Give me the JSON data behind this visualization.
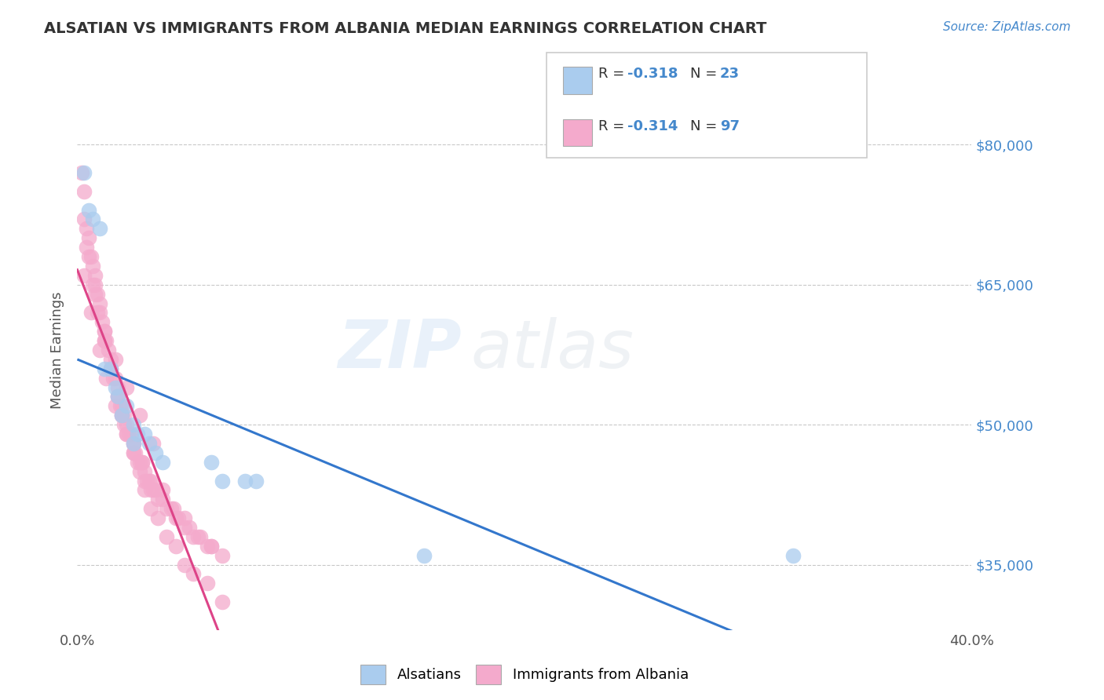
{
  "title": "ALSATIAN VS IMMIGRANTS FROM ALBANIA MEDIAN EARNINGS CORRELATION CHART",
  "source": "Source: ZipAtlas.com",
  "ylabel": "Median Earnings",
  "xlim": [
    0.0,
    0.4
  ],
  "ylim": [
    28000,
    88000
  ],
  "xtick_labels": [
    "0.0%",
    "",
    "",
    "",
    "40.0%"
  ],
  "xtick_vals": [
    0.0,
    0.1,
    0.2,
    0.3,
    0.4
  ],
  "ytick_labels": [
    "$35,000",
    "$50,000",
    "$65,000",
    "$80,000"
  ],
  "ytick_vals": [
    35000,
    50000,
    65000,
    80000
  ],
  "legend_labels_bottom": [
    "Alsatians",
    "Immigrants from Albania"
  ],
  "watermark_zip": "ZIP",
  "watermark_atlas": "atlas",
  "series1_color": "#aaccee",
  "series2_color": "#f4aacc",
  "line1_color": "#3377cc",
  "line2_color": "#dd4488",
  "background_color": "#ffffff",
  "grid_color": "#bbbbbb",
  "title_color": "#333333",
  "source_color": "#4488cc",
  "ytick_color": "#4488cc",
  "legend_r1": "R = -0.318",
  "legend_n1": "N = 23",
  "legend_r2": "R = -0.314",
  "legend_n2": "N = 97",
  "alsatian_x": [
    0.003,
    0.005,
    0.007,
    0.01,
    0.012,
    0.015,
    0.017,
    0.018,
    0.02,
    0.022,
    0.025,
    0.025,
    0.027,
    0.03,
    0.032,
    0.035,
    0.038,
    0.06,
    0.065,
    0.075,
    0.08,
    0.155,
    0.32
  ],
  "alsatian_y": [
    77000,
    73000,
    72000,
    71000,
    56000,
    56000,
    54000,
    53000,
    51000,
    52000,
    50000,
    48000,
    49000,
    49000,
    48000,
    47000,
    46000,
    46000,
    44000,
    44000,
    44000,
    36000,
    36000
  ],
  "albania_x": [
    0.002,
    0.003,
    0.004,
    0.005,
    0.006,
    0.007,
    0.008,
    0.008,
    0.009,
    0.01,
    0.01,
    0.011,
    0.012,
    0.012,
    0.013,
    0.014,
    0.015,
    0.015,
    0.016,
    0.017,
    0.018,
    0.018,
    0.019,
    0.02,
    0.02,
    0.021,
    0.022,
    0.022,
    0.023,
    0.024,
    0.025,
    0.025,
    0.026,
    0.027,
    0.028,
    0.029,
    0.03,
    0.03,
    0.031,
    0.032,
    0.033,
    0.034,
    0.035,
    0.036,
    0.038,
    0.04,
    0.042,
    0.044,
    0.045,
    0.048,
    0.05,
    0.052,
    0.055,
    0.058,
    0.06,
    0.065,
    0.003,
    0.005,
    0.007,
    0.009,
    0.012,
    0.015,
    0.018,
    0.02,
    0.022,
    0.025,
    0.028,
    0.03,
    0.033,
    0.036,
    0.04,
    0.044,
    0.048,
    0.052,
    0.058,
    0.065,
    0.003,
    0.006,
    0.01,
    0.013,
    0.017,
    0.021,
    0.025,
    0.029,
    0.033,
    0.038,
    0.043,
    0.048,
    0.054,
    0.06,
    0.004,
    0.008,
    0.012,
    0.017,
    0.022,
    0.028,
    0.034
  ],
  "albania_y": [
    77000,
    75000,
    71000,
    70000,
    68000,
    67000,
    66000,
    65000,
    64000,
    63000,
    62000,
    61000,
    60000,
    59000,
    59000,
    58000,
    57000,
    56000,
    55000,
    55000,
    54000,
    53000,
    52000,
    52000,
    51000,
    51000,
    50000,
    49000,
    49000,
    49000,
    48000,
    47000,
    47000,
    46000,
    46000,
    46000,
    45000,
    44000,
    44000,
    44000,
    43000,
    43000,
    43000,
    42000,
    42000,
    41000,
    41000,
    40000,
    40000,
    39000,
    39000,
    38000,
    38000,
    37000,
    37000,
    36000,
    72000,
    68000,
    65000,
    62000,
    59000,
    56000,
    53000,
    51000,
    49000,
    47000,
    45000,
    43000,
    41000,
    40000,
    38000,
    37000,
    35000,
    34000,
    33000,
    31000,
    66000,
    62000,
    58000,
    55000,
    52000,
    50000,
    48000,
    46000,
    44000,
    43000,
    41000,
    40000,
    38000,
    37000,
    69000,
    64000,
    60000,
    57000,
    54000,
    51000,
    48000
  ]
}
